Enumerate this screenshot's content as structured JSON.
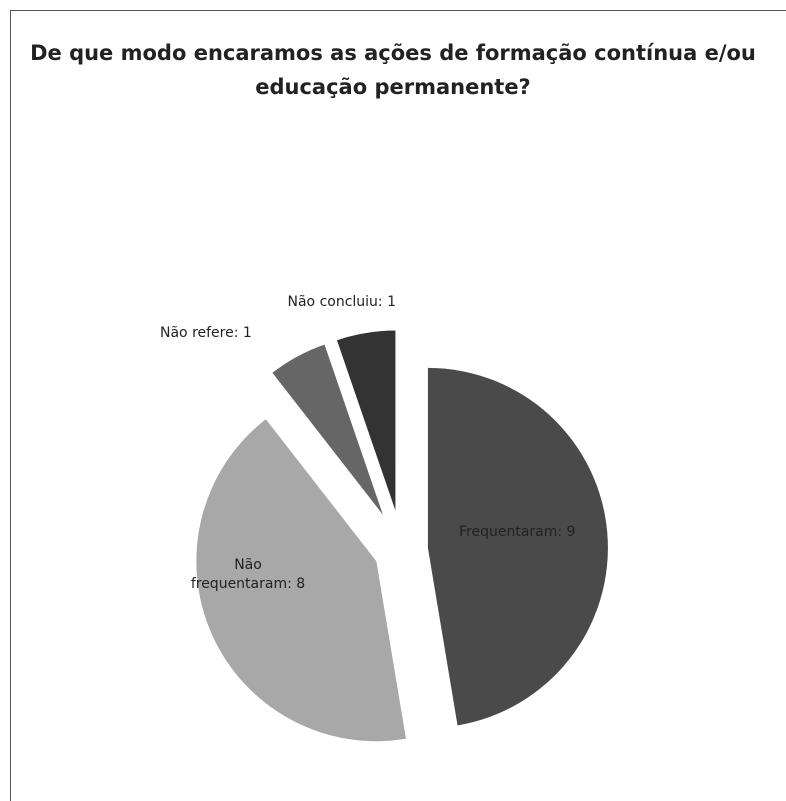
{
  "chart_data": {
    "type": "pie",
    "title": "De que modo encaramos as ações de formação contínua e/ou educação permanente?",
    "values": [
      9,
      8,
      1,
      1
    ],
    "value_labels": [
      "Frequentaram: 9",
      "Não frequentaram: 8",
      "Não refere: 1",
      "Não concluiu: 1"
    ],
    "colors": [
      "#4a4a4a",
      "#a8a8a8",
      "#666666",
      "#333333"
    ]
  }
}
